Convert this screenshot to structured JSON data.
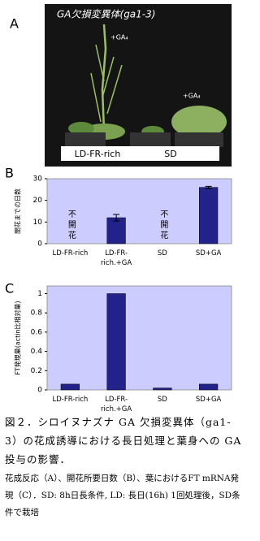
{
  "panel_labels": [
    "A",
    "B",
    "C"
  ],
  "photo": {
    "title": "GA欠損変異体(ga1-3)",
    "treatment_labels": [
      "+GA₄",
      "+GA₄"
    ],
    "condition_labels": [
      "LD-FR-rich",
      "SD"
    ]
  },
  "chart_data": [
    {
      "type": "bar",
      "y_label": "開花までの日数",
      "categories": [
        "LD-FR-rich",
        "LD-FR-rich.+GA",
        "SD",
        "SD+GA"
      ],
      "values": [
        null,
        12,
        null,
        26
      ],
      "errors": [
        null,
        1.5,
        null,
        0.5
      ],
      "color": "#22228a",
      "background": "#ccccff",
      "ylim": [
        0,
        30
      ],
      "yticks": [
        0,
        10,
        20,
        30
      ],
      "annotations": [
        {
          "text": "不開花",
          "category": "LD-FR-rich"
        },
        {
          "text": "不開花",
          "category": "SD"
        }
      ]
    },
    {
      "type": "bar",
      "y_label": "FT発現量(actin比相対量)",
      "categories": [
        "LD-FR-rich",
        "LD-FR-rich.+GA",
        "SD",
        "SD+GA"
      ],
      "values": [
        0.06,
        1.0,
        0.02,
        0.06
      ],
      "color": "#22228a",
      "background": "#ccccff",
      "ylim": [
        0,
        1.08
      ],
      "yticks": [
        0,
        0.2,
        0.4,
        0.6,
        0.8,
        1
      ]
    }
  ],
  "caption": {
    "title": "図２．シロイヌナズナ GA 欠損変異体（ga1-3）の花成誘導における長日処理と葉身への GA 投与の影響．",
    "body": "花成反応（A）、開花所要日数（B）、葉におけるFT mRNA発現（C）．SD: 8h日長条件, LD: 長日(16h) 1回処理後，SD条件で栽培"
  }
}
